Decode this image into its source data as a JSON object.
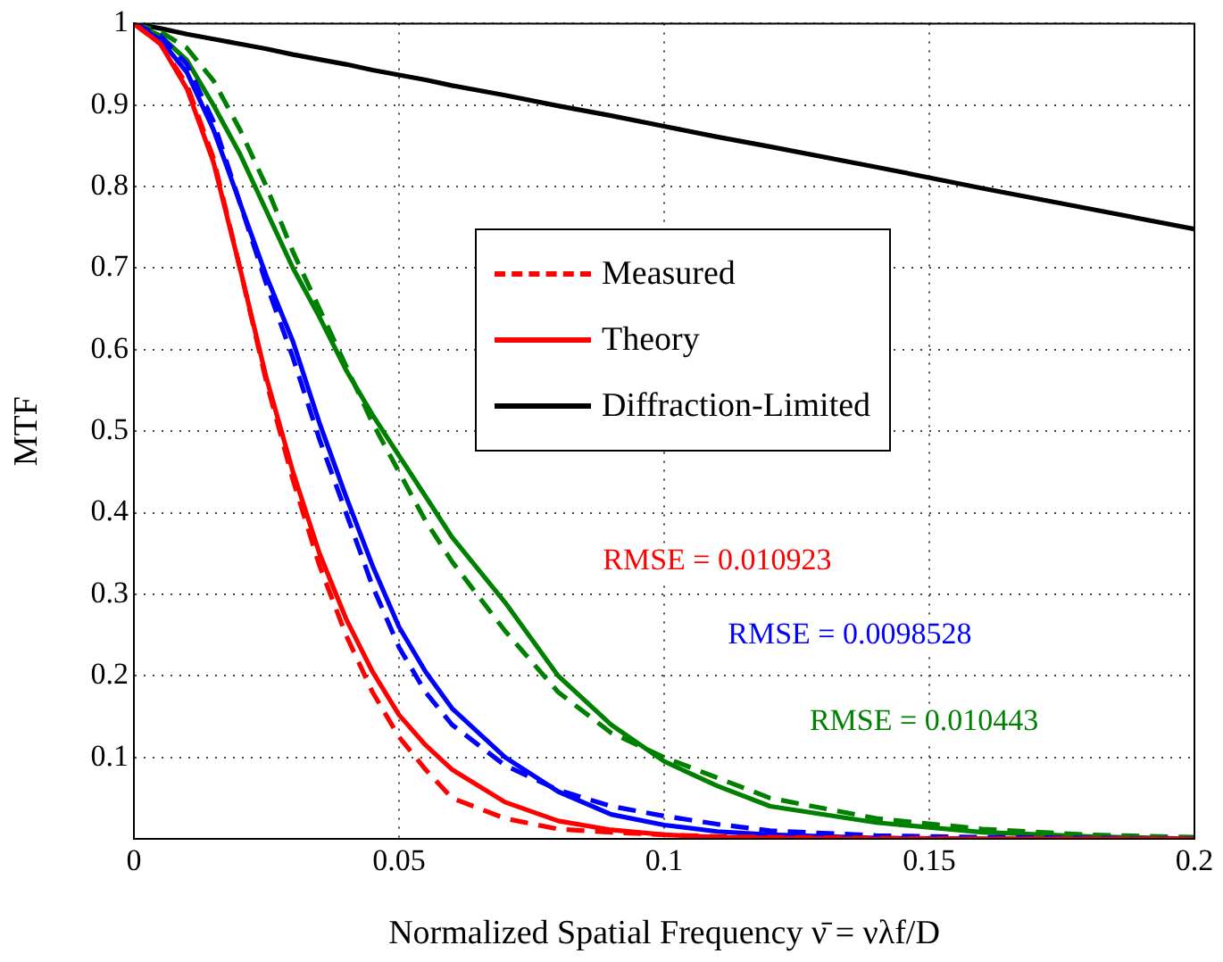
{
  "chart_data": {
    "type": "line",
    "xlabel": "Normalized Spatial Frequency ν̄ = νλf/D",
    "ylabel": "MTF",
    "x": [
      0,
      0.005,
      0.01,
      0.015,
      0.02,
      0.025,
      0.03,
      0.035,
      0.04,
      0.045,
      0.05,
      0.055,
      0.06,
      0.07,
      0.08,
      0.09,
      0.1,
      0.11,
      0.12,
      0.14,
      0.16,
      0.18,
      0.2
    ],
    "xlim": [
      0,
      0.2
    ],
    "xticks": [
      0,
      0.05,
      0.1,
      0.15,
      0.2
    ],
    "ylim": [
      0,
      1
    ],
    "yticks": [
      0.1,
      0.2,
      0.3,
      0.4,
      0.5,
      0.6,
      0.7,
      0.8,
      0.9,
      1
    ],
    "grid": true,
    "legend": "top right",
    "marker": "none",
    "series": [
      {
        "name": "Measured",
        "color": "#ff0000",
        "line_style": "dashed",
        "values": [
          1,
          0.975,
          0.925,
          0.835,
          0.7,
          0.56,
          0.44,
          0.335,
          0.25,
          0.18,
          0.125,
          0.085,
          0.05,
          0.025,
          0.012,
          0.008,
          0.005,
          0.003,
          0.002,
          0.001,
          0,
          0,
          0
        ]
      },
      {
        "name": "Theory",
        "color": "#ff0000",
        "line_style": "solid",
        "values": [
          1,
          0.975,
          0.92,
          0.83,
          0.7,
          0.565,
          0.45,
          0.35,
          0.27,
          0.205,
          0.152,
          0.115,
          0.085,
          0.045,
          0.022,
          0.011,
          0.005,
          0.002,
          0.001,
          0,
          0,
          0,
          0
        ]
      },
      {
        "color": "#0000ff",
        "line_style": "dashed",
        "values": [
          1,
          0.985,
          0.95,
          0.88,
          0.78,
          0.68,
          0.59,
          0.49,
          0.4,
          0.31,
          0.235,
          0.18,
          0.14,
          0.09,
          0.06,
          0.04,
          0.028,
          0.018,
          0.01,
          0.004,
          0.002,
          0.001,
          0
        ]
      },
      {
        "color": "#0000ff",
        "line_style": "solid",
        "values": [
          1,
          0.98,
          0.94,
          0.87,
          0.78,
          0.69,
          0.61,
          0.51,
          0.42,
          0.335,
          0.26,
          0.205,
          0.16,
          0.1,
          0.058,
          0.03,
          0.017,
          0.009,
          0.005,
          0.001,
          0,
          0,
          0
        ]
      },
      {
        "color": "#008000",
        "line_style": "dashed",
        "values": [
          1,
          0.99,
          0.97,
          0.93,
          0.87,
          0.8,
          0.72,
          0.65,
          0.58,
          0.51,
          0.45,
          0.39,
          0.34,
          0.255,
          0.18,
          0.13,
          0.1,
          0.075,
          0.05,
          0.025,
          0.012,
          0.005,
          0.002
        ]
      },
      {
        "color": "#008000",
        "line_style": "solid",
        "values": [
          1,
          0.985,
          0.955,
          0.9,
          0.84,
          0.77,
          0.7,
          0.64,
          0.575,
          0.52,
          0.47,
          0.42,
          0.37,
          0.29,
          0.2,
          0.14,
          0.095,
          0.065,
          0.04,
          0.02,
          0.008,
          0.003,
          0
        ]
      },
      {
        "name": "Diffraction-Limited",
        "color": "#000000",
        "line_style": "solid",
        "values": [
          1,
          0.994,
          0.987,
          0.981,
          0.975,
          0.969,
          0.962,
          0.956,
          0.95,
          0.943,
          0.937,
          0.931,
          0.924,
          0.912,
          0.899,
          0.887,
          0.874,
          0.861,
          0.849,
          0.824,
          0.798,
          0.773,
          0.748
        ]
      }
    ],
    "annotations": [
      "RMSE = 0.010923",
      "RMSE = 0.0098528",
      "RMSE = 0.010443"
    ]
  }
}
